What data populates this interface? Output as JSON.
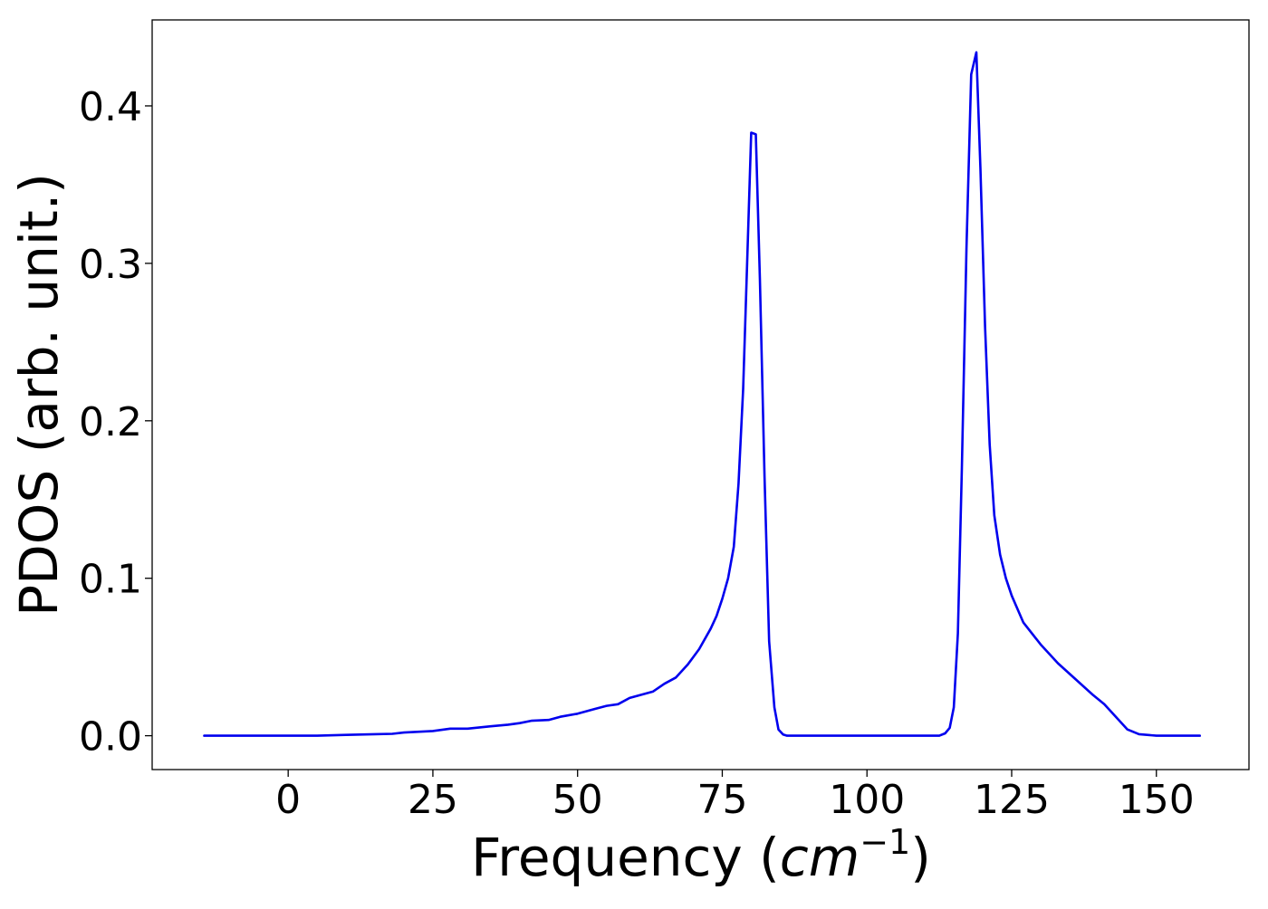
{
  "chart_data": {
    "type": "line",
    "title": "",
    "xlabel": "Frequency (",
    "xlabel_math": "cm",
    "xlabel_sup": "−1",
    "xlabel_end": ")",
    "ylabel": "PDOS (arb. unit.)",
    "xlim": [
      -23.5,
      166
    ],
    "ylim": [
      -0.0215,
      0.4546
    ],
    "grid": false,
    "legend": "none",
    "xticks": [
      {
        "value": 0,
        "label": "0"
      },
      {
        "value": 25,
        "label": "25"
      },
      {
        "value": 50,
        "label": "50"
      },
      {
        "value": 75,
        "label": "75"
      },
      {
        "value": 100,
        "label": "100"
      },
      {
        "value": 125,
        "label": "125"
      },
      {
        "value": 150,
        "label": "150"
      }
    ],
    "yticks": [
      {
        "value": 0.0,
        "label": "0.0"
      },
      {
        "value": 0.1,
        "label": "0.1"
      },
      {
        "value": 0.2,
        "label": "0.2"
      },
      {
        "value": 0.3,
        "label": "0.3"
      },
      {
        "value": 0.4,
        "label": "0.4"
      }
    ],
    "series": [
      {
        "color": "#0000ee",
        "x": [
          -14.5,
          0,
          5,
          10,
          15,
          18,
          20,
          25,
          28,
          31,
          35,
          38,
          40,
          42,
          45,
          47,
          50,
          53,
          55,
          57,
          59,
          61,
          63,
          65,
          67,
          69,
          71,
          73,
          74,
          75,
          76,
          77,
          77.8,
          78.6,
          79.3,
          80,
          80.8,
          81.5,
          82.3,
          83.1,
          84,
          84.7,
          85.5,
          86.2,
          87,
          90,
          100,
          110,
          112.5,
          113.5,
          114.3,
          115.0,
          115.7,
          116.4,
          117.2,
          118,
          118.9,
          119.6,
          120.4,
          121.2,
          122,
          123,
          124,
          125,
          127,
          130,
          133,
          136,
          139,
          141,
          143,
          145,
          147,
          150,
          157.5
        ],
        "y": [
          0,
          0,
          0,
          0.0005,
          0.001,
          0.0012,
          0.002,
          0.003,
          0.0045,
          0.0045,
          0.006,
          0.007,
          0.008,
          0.0095,
          0.01,
          0.012,
          0.014,
          0.017,
          0.019,
          0.02,
          0.024,
          0.026,
          0.028,
          0.033,
          0.037,
          0.045,
          0.055,
          0.068,
          0.076,
          0.087,
          0.1,
          0.12,
          0.16,
          0.22,
          0.3,
          0.383,
          0.382,
          0.29,
          0.165,
          0.06,
          0.018,
          0.004,
          0.0008,
          0,
          0,
          0,
          0,
          0,
          0,
          0.0015,
          0.005,
          0.018,
          0.065,
          0.17,
          0.31,
          0.42,
          0.434,
          0.36,
          0.26,
          0.185,
          0.14,
          0.115,
          0.1,
          0.089,
          0.072,
          0.058,
          0.046,
          0.036,
          0.026,
          0.02,
          0.012,
          0.004,
          0.001,
          0,
          0
        ]
      }
    ]
  }
}
